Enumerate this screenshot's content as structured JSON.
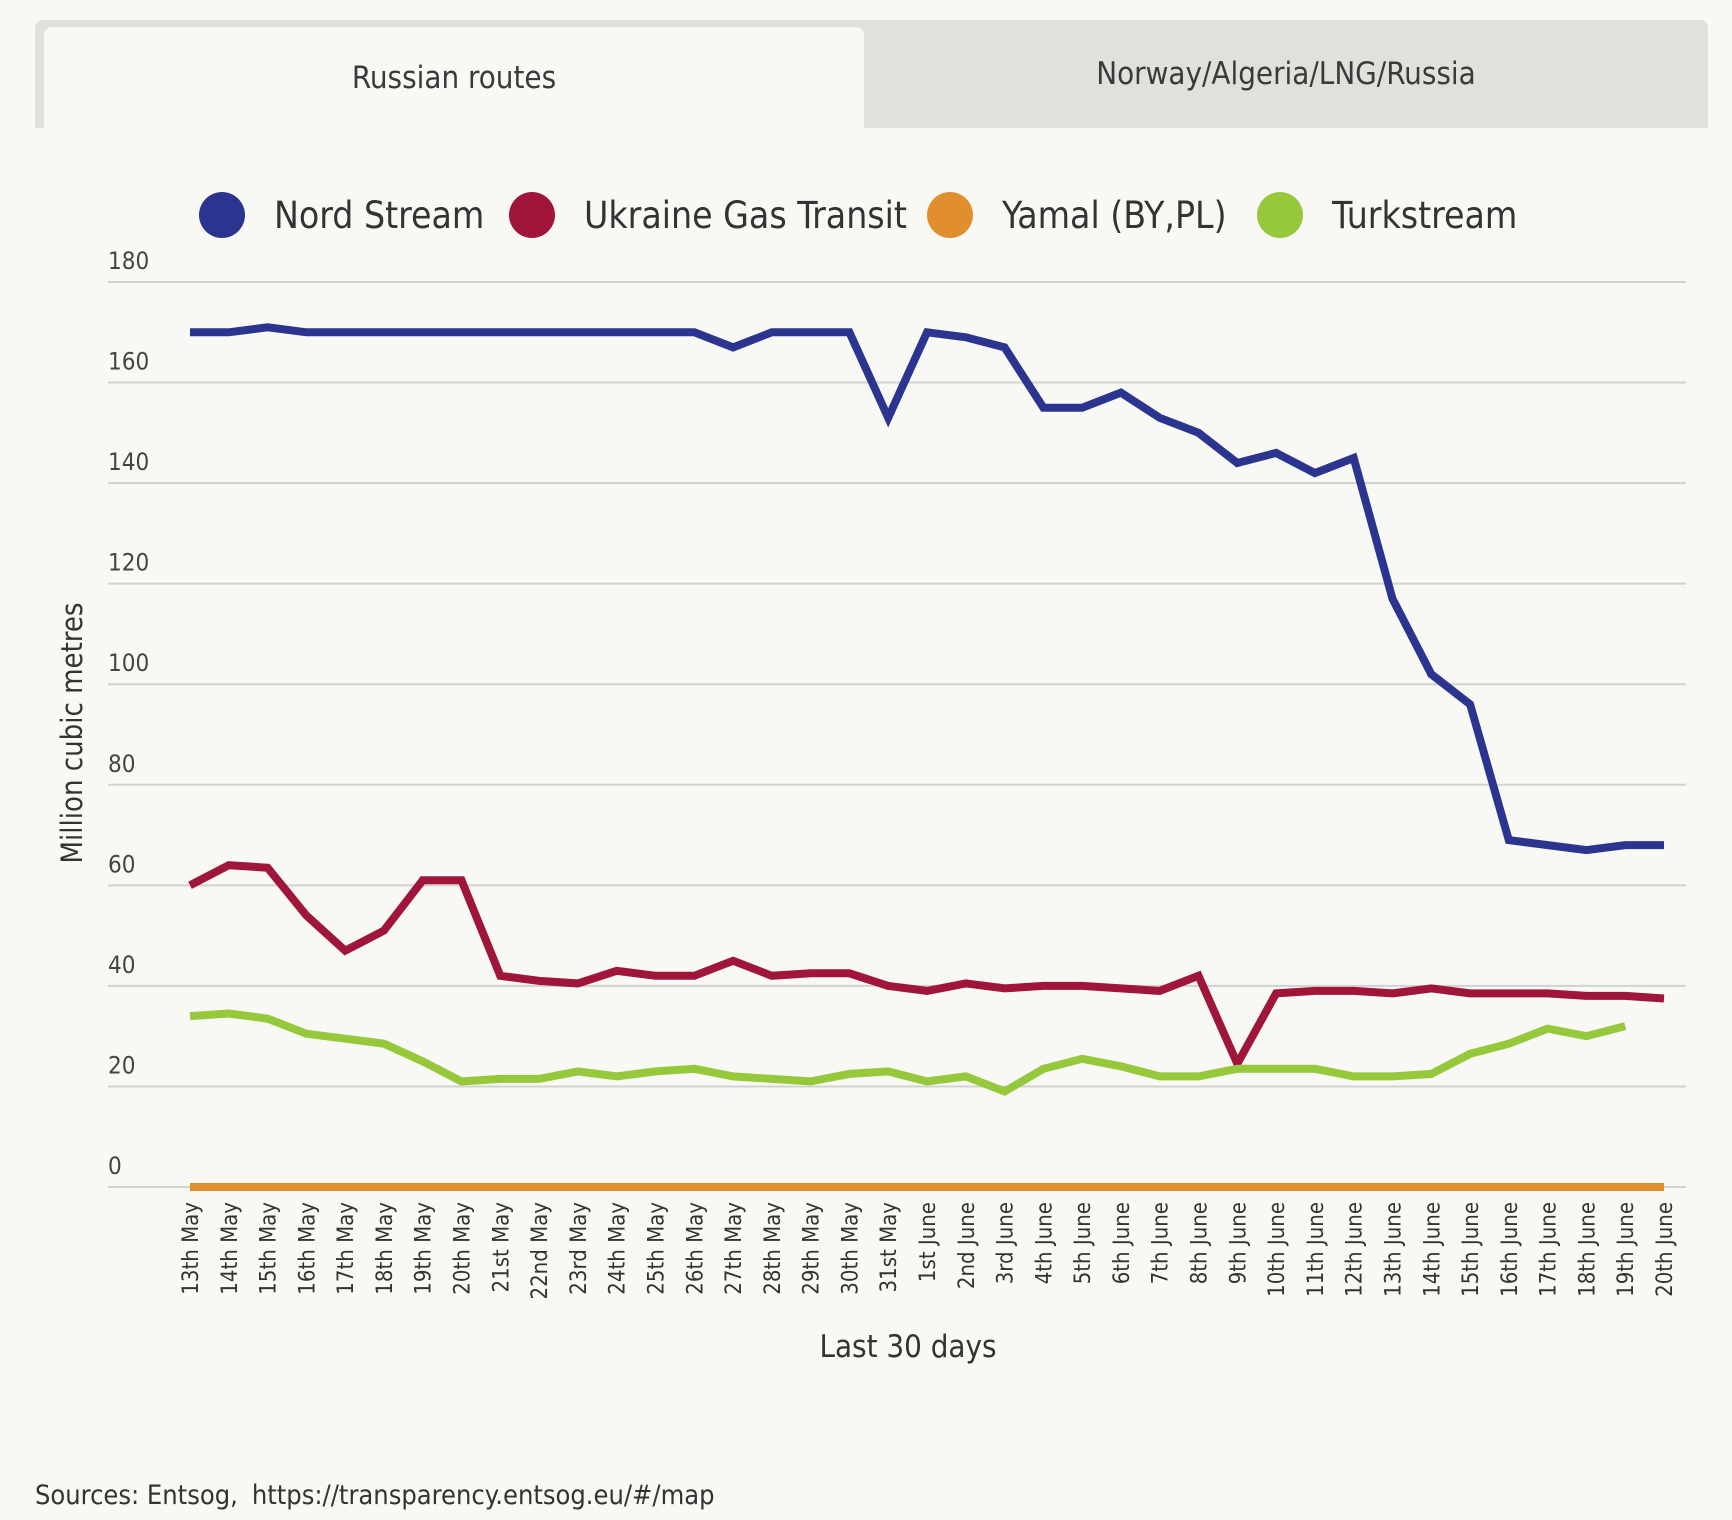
{
  "tabs": [
    {
      "label": "Russian routes",
      "active": true
    },
    {
      "label": "Norway/Algeria/LNG/Russia",
      "active": false
    }
  ],
  "sources": {
    "label": "Sources: Entsog,",
    "link": "https://transparency.entsog.eu/#/map"
  },
  "chart_data": {
    "type": "line",
    "title": "",
    "xlabel": "Last 30 days",
    "ylabel": "Million cubic metres",
    "ylim": [
      0,
      180
    ],
    "yticks": [
      0,
      20,
      40,
      60,
      80,
      100,
      120,
      140,
      160,
      180
    ],
    "grid": true,
    "legend_position": "top",
    "categories": [
      "13th May",
      "14th May",
      "15th May",
      "16th May",
      "17th May",
      "18th May",
      "19th May",
      "20th May",
      "21st May",
      "22nd May",
      "23rd May",
      "24th May",
      "25th May",
      "26th May",
      "27th May",
      "28th May",
      "29th May",
      "30th May",
      "31st May",
      "1st June",
      "2nd June",
      "3rd June",
      "4th June",
      "5th June",
      "6th June",
      "7th June",
      "8th June",
      "9th June",
      "10th June",
      "11th June",
      "12th June",
      "13th June",
      "14th June",
      "15th June",
      "16th June",
      "17th June",
      "18th June",
      "19th June",
      "20th June"
    ],
    "series": [
      {
        "name": "Nord Stream",
        "color": "#2b3590",
        "values": [
          170,
          170,
          171,
          170,
          170,
          170,
          170,
          170,
          170,
          170,
          170,
          170,
          170,
          170,
          167,
          170,
          170,
          170,
          153,
          170,
          169,
          167,
          155,
          155,
          158,
          153,
          150,
          144,
          146,
          142,
          145,
          117,
          102,
          96,
          69,
          68,
          67,
          68,
          68
        ]
      },
      {
        "name": "Ukraine Gas Transit",
        "color": "#a0163a",
        "values": [
          60,
          64,
          63.5,
          54,
          47,
          51,
          61,
          61,
          42,
          41,
          40.5,
          43,
          42,
          42,
          45,
          42,
          42.5,
          42.5,
          40,
          39,
          40.5,
          39.5,
          40,
          40,
          39.5,
          39,
          42,
          24.5,
          38.5,
          39,
          39,
          38.5,
          39.5,
          38.5,
          38.5,
          38.5,
          38,
          38,
          37.5
        ]
      },
      {
        "name": "Yamal (BY,PL)",
        "color": "#e08e2e",
        "values": [
          0,
          0,
          0,
          0,
          0,
          0,
          0,
          0,
          0,
          0,
          0,
          0,
          0,
          0,
          0,
          0,
          0,
          0,
          0,
          0,
          0,
          0,
          0,
          0,
          0,
          0,
          0,
          0,
          0,
          0,
          0,
          0,
          0,
          0,
          0,
          0,
          0,
          0,
          0
        ]
      },
      {
        "name": "Turkstream",
        "color": "#96c83c",
        "values": [
          34,
          34.5,
          33.5,
          30.5,
          29.5,
          28.5,
          25,
          21,
          21.5,
          21.5,
          23,
          22,
          23,
          23.5,
          22,
          21.5,
          21,
          22.5,
          23,
          21,
          22,
          19,
          23.5,
          25.5,
          24,
          22,
          22,
          23.5,
          23.5,
          23.5,
          22,
          22,
          22.5,
          26.5,
          28.5,
          31.5,
          30,
          32,
          null
        ]
      }
    ]
  }
}
